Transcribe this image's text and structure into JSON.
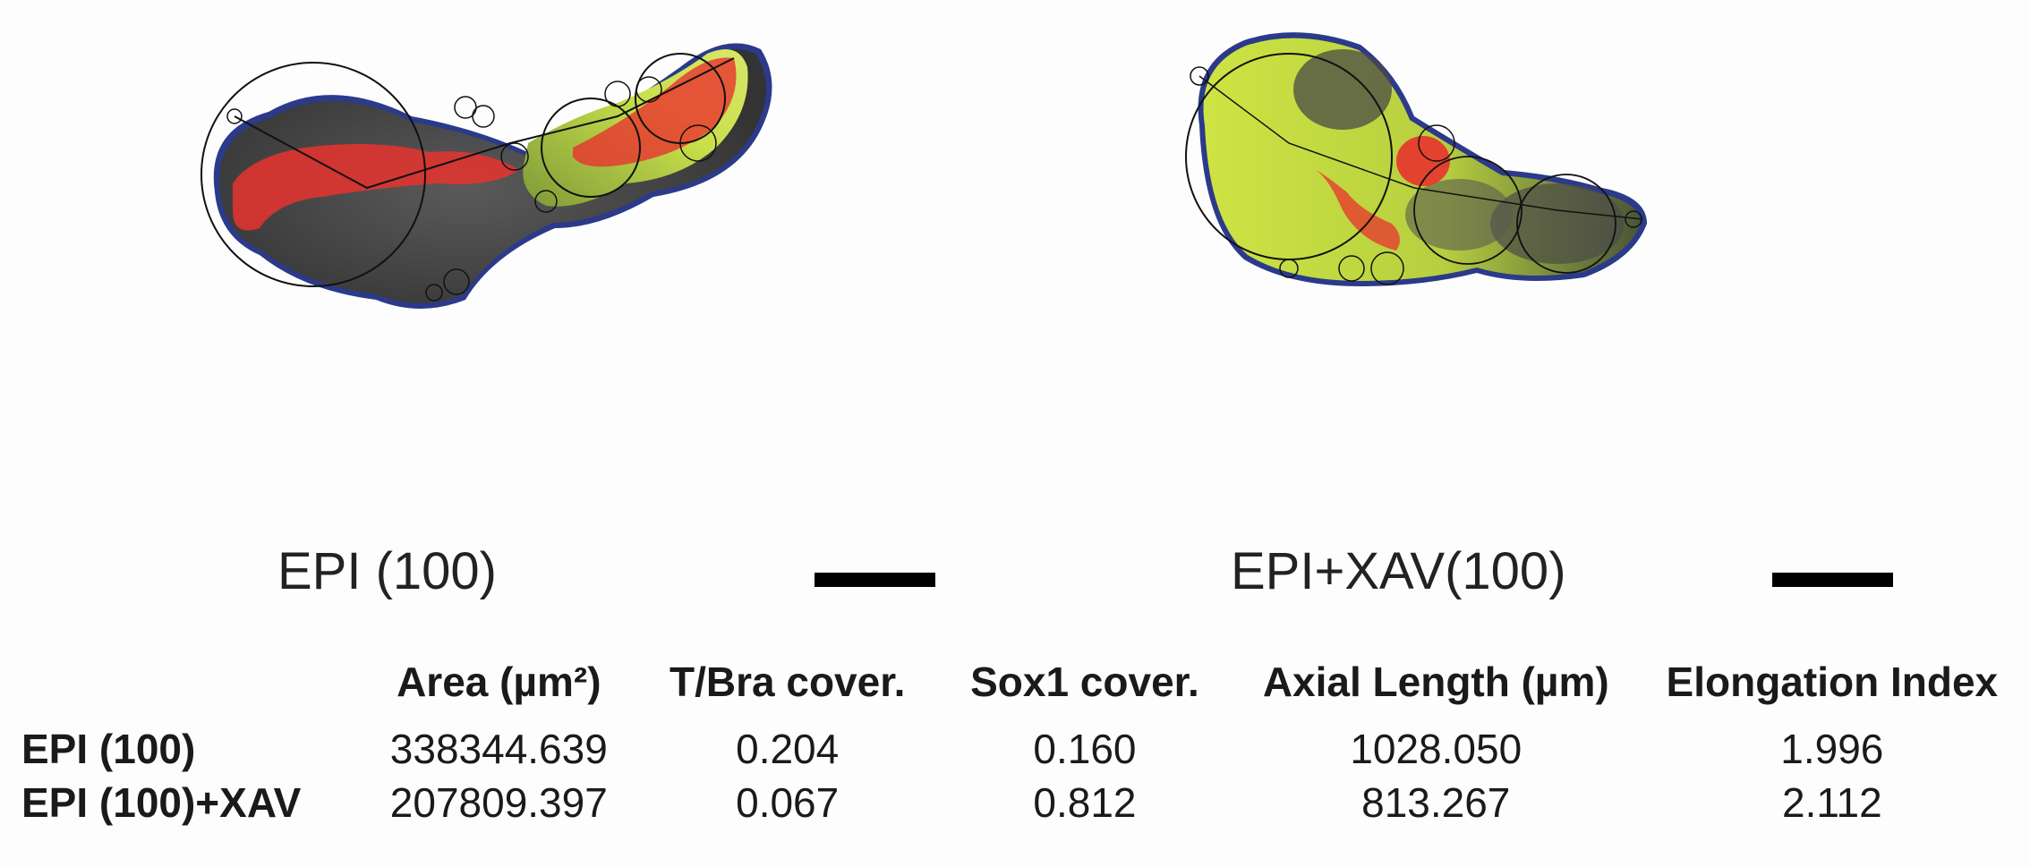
{
  "figure": {
    "panels": [
      {
        "caption": "EPI (100)"
      },
      {
        "caption": "EPI+XAV(100)"
      }
    ]
  },
  "table": {
    "headers": [
      "",
      "Area (µm²)",
      "T/Bra cover.",
      "Sox1 cover.",
      "Axial Length (µm)",
      "Elongation Index"
    ],
    "rows": [
      {
        "label": "EPI (100)",
        "area": "338344.639",
        "tbra": "0.204",
        "sox1": "0.160",
        "axial": "1028.050",
        "elong": "1.996"
      },
      {
        "label": "EPI (100)+XAV",
        "area": "207809.397",
        "tbra": "0.067",
        "sox1": "0.812",
        "axial": "813.267",
        "elong": "2.112"
      }
    ]
  },
  "colors": {
    "tbra_red": "#e8322e",
    "sox1_green": "#c9e84a",
    "tissue_gray": "#3c3c3c",
    "outline_blue": "#2b3a8a"
  }
}
